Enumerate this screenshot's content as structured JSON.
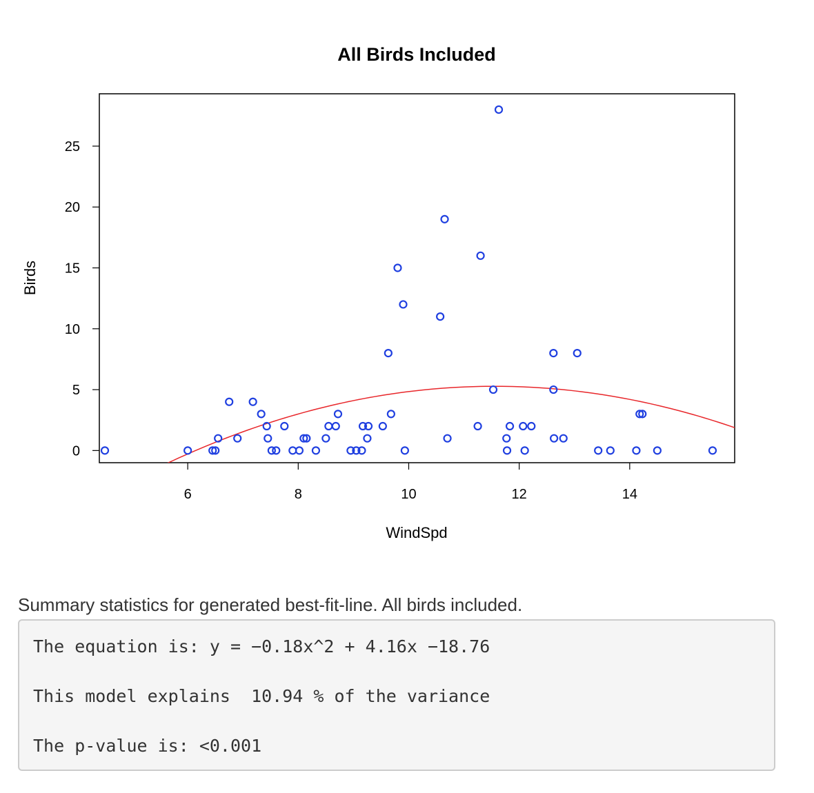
{
  "chart_data": {
    "type": "scatter",
    "title": "All Birds Included",
    "xlabel": "WindSpd",
    "ylabel": "Birds",
    "xlim": [
      4.4,
      15.9
    ],
    "ylim": [
      -1,
      29.3
    ],
    "xticks": [
      6,
      8,
      10,
      12,
      14
    ],
    "yticks": [
      0,
      5,
      10,
      15,
      20,
      25
    ],
    "grid": false,
    "point_color": "#1f3fe0",
    "fit_color": "#e8262a",
    "fit": {
      "a": -0.18,
      "b": 4.16,
      "c": -18.76
    },
    "points": [
      [
        4.5,
        0
      ],
      [
        6.0,
        0
      ],
      [
        6.45,
        0
      ],
      [
        6.5,
        0
      ],
      [
        6.55,
        1
      ],
      [
        6.75,
        4
      ],
      [
        6.9,
        1
      ],
      [
        7.18,
        4
      ],
      [
        7.33,
        3
      ],
      [
        7.43,
        2
      ],
      [
        7.45,
        1
      ],
      [
        7.52,
        0
      ],
      [
        7.6,
        0
      ],
      [
        7.75,
        2
      ],
      [
        7.9,
        0
      ],
      [
        8.02,
        0
      ],
      [
        8.1,
        1
      ],
      [
        8.15,
        1
      ],
      [
        8.32,
        0
      ],
      [
        8.5,
        1
      ],
      [
        8.55,
        2
      ],
      [
        8.68,
        2
      ],
      [
        8.72,
        3
      ],
      [
        8.95,
        0
      ],
      [
        9.05,
        0
      ],
      [
        9.15,
        0
      ],
      [
        9.17,
        2
      ],
      [
        9.25,
        1
      ],
      [
        9.27,
        2
      ],
      [
        9.53,
        2
      ],
      [
        9.63,
        8
      ],
      [
        9.68,
        3
      ],
      [
        9.8,
        15
      ],
      [
        9.9,
        12
      ],
      [
        9.93,
        0
      ],
      [
        10.57,
        11
      ],
      [
        10.65,
        19
      ],
      [
        10.7,
        1
      ],
      [
        11.25,
        2
      ],
      [
        11.3,
        16
      ],
      [
        11.53,
        5
      ],
      [
        11.63,
        28
      ],
      [
        11.77,
        1
      ],
      [
        11.78,
        0
      ],
      [
        11.83,
        2
      ],
      [
        12.07,
        2
      ],
      [
        12.1,
        0
      ],
      [
        12.22,
        2
      ],
      [
        12.62,
        8
      ],
      [
        12.62,
        5
      ],
      [
        12.63,
        1
      ],
      [
        12.8,
        1
      ],
      [
        13.05,
        8
      ],
      [
        13.43,
        0
      ],
      [
        13.65,
        0
      ],
      [
        14.12,
        0
      ],
      [
        14.18,
        3
      ],
      [
        14.23,
        3
      ],
      [
        14.5,
        0
      ],
      [
        15.5,
        0
      ]
    ]
  },
  "summary": {
    "caption": "Summary statistics for generated best-fit-line. All birds included.",
    "equation": "The equation is: y = −0.18x^2 + 4.16x −18.76",
    "variance": "This model explains  10.94 % of the variance",
    "pvalue": "The p-value is: <0.001"
  }
}
